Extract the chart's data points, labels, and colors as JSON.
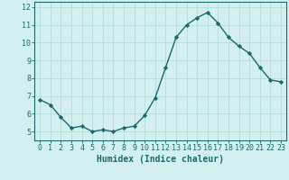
{
  "x": [
    0,
    1,
    2,
    3,
    4,
    5,
    6,
    7,
    8,
    9,
    10,
    11,
    12,
    13,
    14,
    15,
    16,
    17,
    18,
    19,
    20,
    21,
    22,
    23
  ],
  "y": [
    6.8,
    6.5,
    5.8,
    5.2,
    5.3,
    5.0,
    5.1,
    5.0,
    5.2,
    5.3,
    5.9,
    6.9,
    8.6,
    10.3,
    11.0,
    11.4,
    11.7,
    11.1,
    10.3,
    9.8,
    9.4,
    8.6,
    7.9,
    7.8
  ],
  "line_color": "#1a6b6b",
  "marker": "D",
  "marker_size": 2.2,
  "bg_color": "#d4efef",
  "grid_color": "#b8dede",
  "xlabel": "Humidex (Indice chaleur)",
  "ylim": [
    4.5,
    12.3
  ],
  "xlim": [
    -0.5,
    23.5
  ],
  "yticks": [
    5,
    6,
    7,
    8,
    9,
    10,
    11,
    12
  ],
  "xticks": [
    0,
    1,
    2,
    3,
    4,
    5,
    6,
    7,
    8,
    9,
    10,
    11,
    12,
    13,
    14,
    15,
    16,
    17,
    18,
    19,
    20,
    21,
    22,
    23
  ],
  "label_fontsize": 7.0,
  "tick_fontsize": 6.0,
  "line_width": 1.0
}
